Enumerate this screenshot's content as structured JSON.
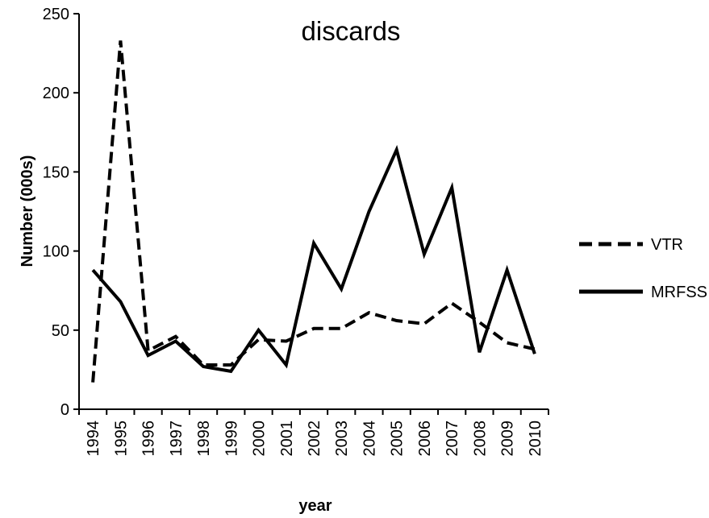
{
  "chart_data": {
    "type": "line",
    "title": "discards",
    "xlabel": "year",
    "ylabel": "Number (000s)",
    "ylim": [
      0,
      250
    ],
    "yticks": [
      0,
      50,
      100,
      150,
      200,
      250
    ],
    "categories": [
      "1994",
      "1995",
      "1996",
      "1997",
      "1998",
      "1999",
      "2000",
      "2001",
      "2002",
      "2003",
      "2004",
      "2005",
      "2006",
      "2007",
      "2008",
      "2009",
      "2010"
    ],
    "grid": false,
    "legend_position": "right",
    "series": [
      {
        "name": "VTR",
        "style": "dashed",
        "color": "#000000",
        "values": [
          17,
          233,
          37,
          46,
          28,
          28,
          44,
          43,
          51,
          51,
          61,
          56,
          54,
          67,
          55,
          42,
          38
        ]
      },
      {
        "name": "MRFSS",
        "style": "solid",
        "color": "#000000",
        "values": [
          88,
          68,
          34,
          43,
          27,
          24,
          50,
          28,
          105,
          76,
          125,
          164,
          98,
          140,
          36,
          88,
          35
        ]
      }
    ]
  }
}
